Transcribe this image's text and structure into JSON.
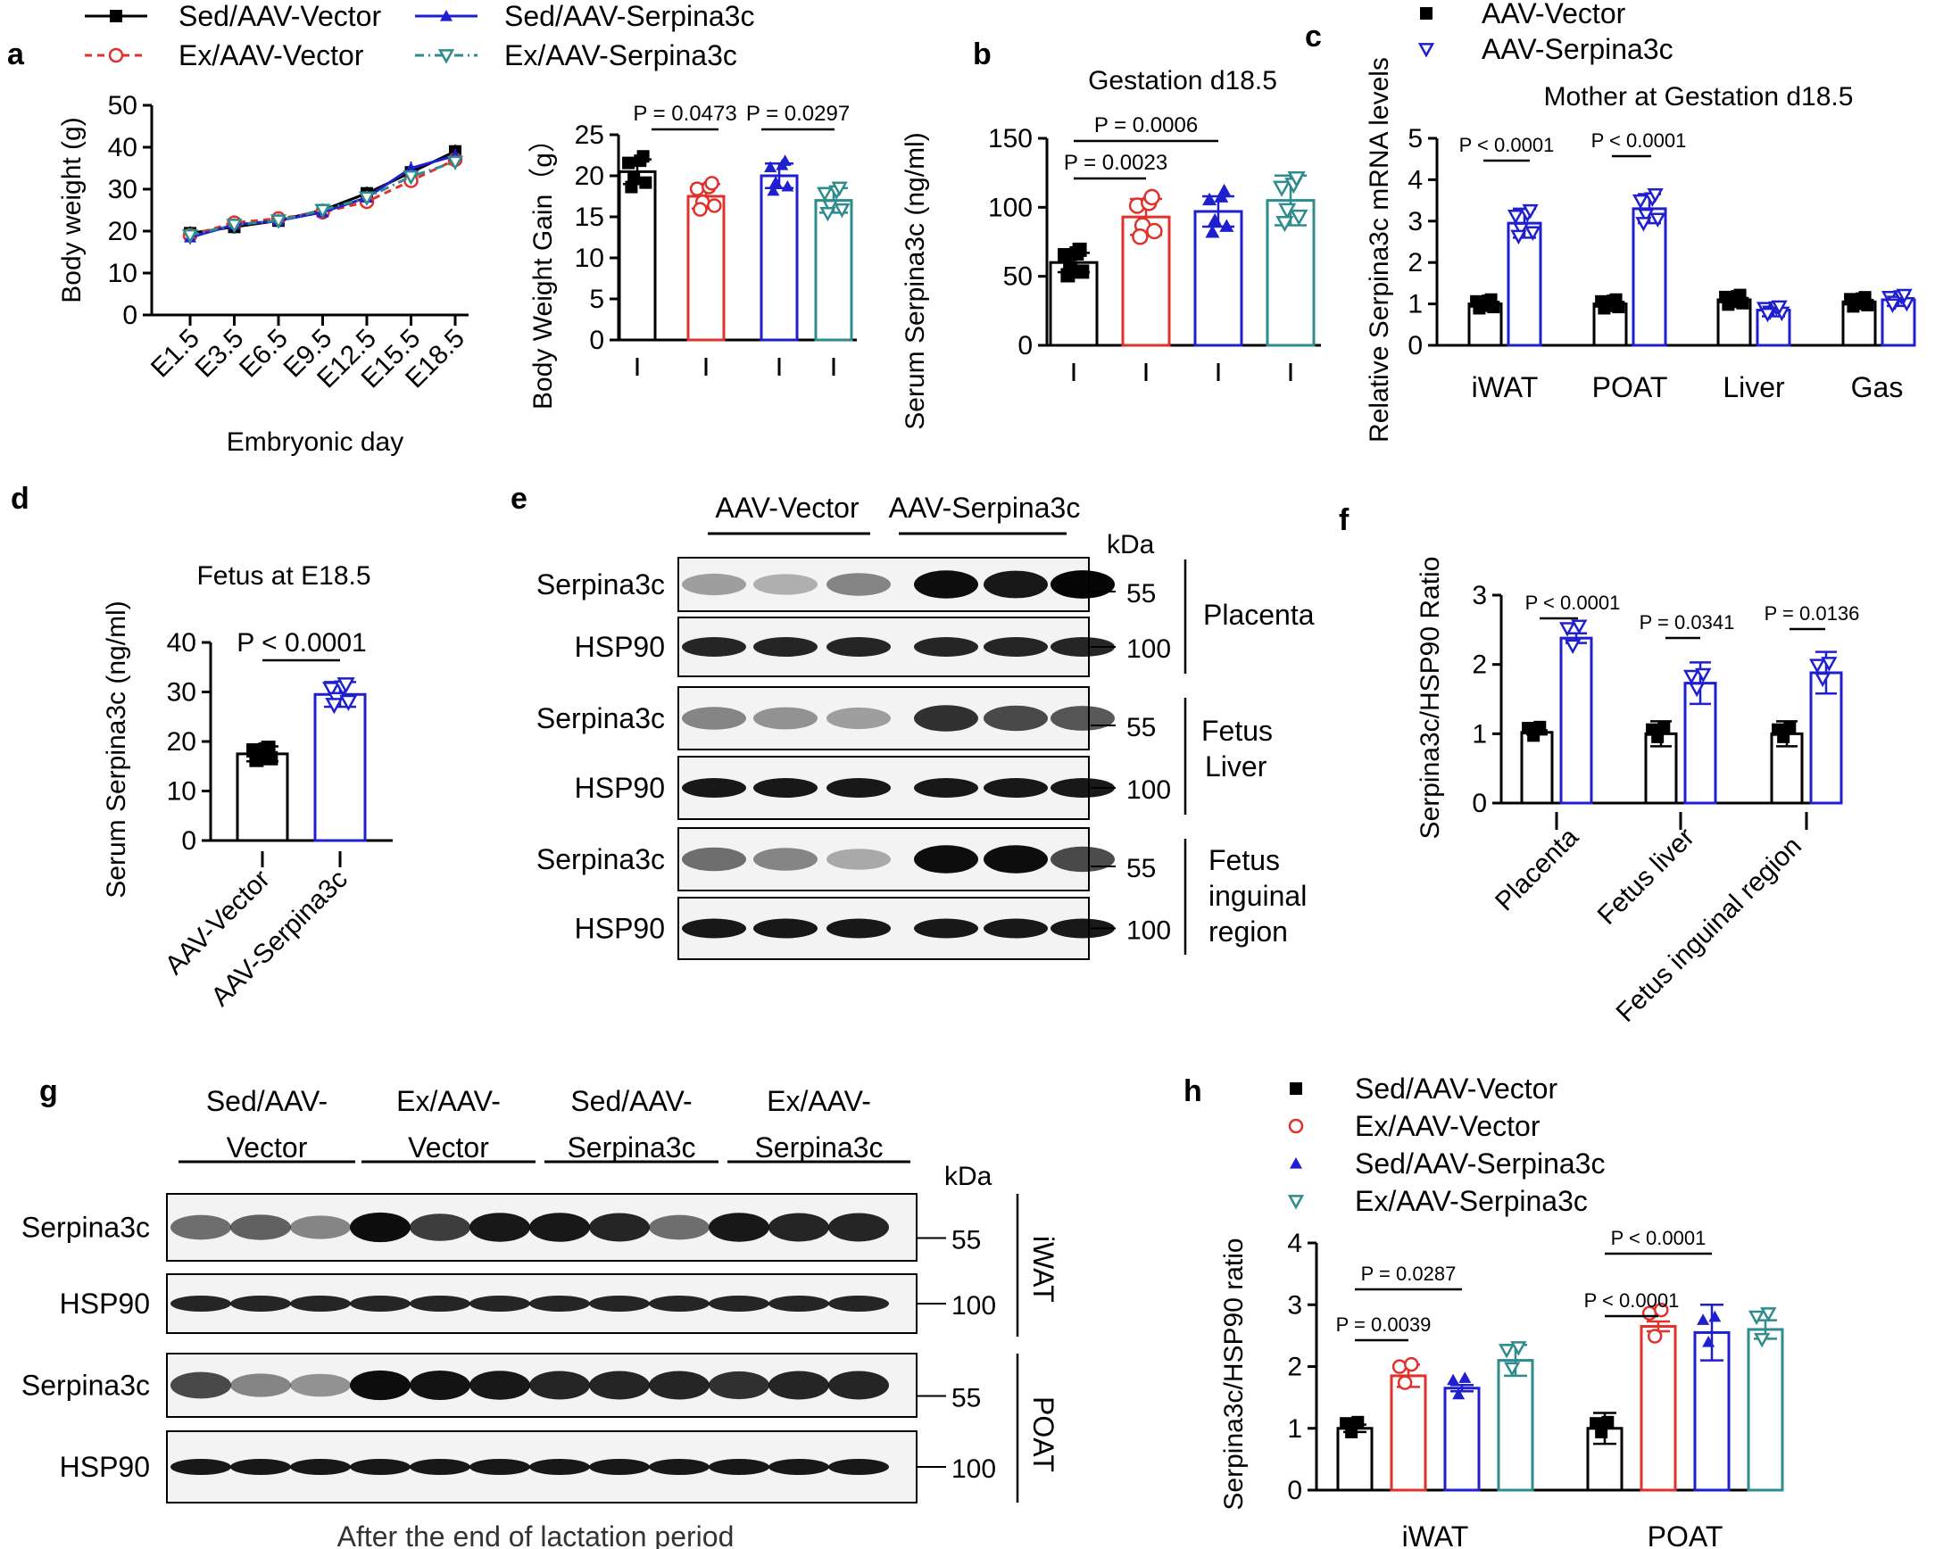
{
  "legend_top": [
    {
      "label": "Sed/AAV-Vector",
      "color": "#000000",
      "marker": "square",
      "dash": "none"
    },
    {
      "label": "Sed/AAV-Serpina3c",
      "color": "#1f1fcf",
      "marker": "triangle-up",
      "dash": "none"
    },
    {
      "label": "Ex/AAV-Vector",
      "color": "#e0312b",
      "marker": "circle-open",
      "dash": "8,6"
    },
    {
      "label": "Ex/AAV-Serpina3c",
      "color": "#2e8c8c",
      "marker": "triangle-down-open",
      "dash": "10,5,2,5"
    }
  ],
  "colors": {
    "sed_vec": "#000000",
    "ex_vec": "#e0312b",
    "sed_serp": "#1f1fcf",
    "ex_serp": "#2e8c8c"
  },
  "panels": {
    "a": {
      "letter": "a"
    },
    "b": {
      "letter": "b"
    },
    "c": {
      "letter": "c"
    },
    "d": {
      "letter": "d"
    },
    "e": {
      "letter": "e"
    },
    "f": {
      "letter": "f"
    },
    "g": {
      "letter": "g"
    },
    "h": {
      "letter": "h"
    }
  },
  "chart_data": [
    {
      "id": "a1",
      "type": "line",
      "ylabel": "Body weight (g)",
      "xlabel": "Embryonic day",
      "categories": [
        "E1.5",
        "E3.5",
        "E6.5",
        "E9.5",
        "E12.5",
        "E15.5",
        "E18.5"
      ],
      "ylim": [
        0,
        50
      ],
      "yticks": [
        0,
        10,
        20,
        30,
        40,
        50
      ],
      "series": [
        {
          "name": "Sed/AAV-Vector",
          "values": [
            19.5,
            21,
            22.5,
            25,
            29,
            34,
            39
          ]
        },
        {
          "name": "Ex/AAV-Vector",
          "values": [
            19,
            22,
            23,
            24.5,
            27,
            32,
            37
          ]
        },
        {
          "name": "Sed/AAV-Serpina3c",
          "values": [
            18.5,
            21.5,
            22.5,
            24.5,
            28,
            35,
            38
          ]
        },
        {
          "name": "Ex/AAV-Serpina3c",
          "values": [
            19,
            21.5,
            22.5,
            25,
            28,
            33,
            36.5
          ]
        }
      ]
    },
    {
      "id": "a2",
      "type": "bar",
      "ylabel": "Body Weight Gain（g）",
      "categories": [
        "Sed/AAV-Vector",
        "Ex/AAV-Vector",
        "Sed/AAV-Serpina3c",
        "Ex/AAV-Serpina3c"
      ],
      "values": [
        20.5,
        17.5,
        20,
        17
      ],
      "ylim": [
        0,
        25
      ],
      "yticks": [
        0,
        5,
        10,
        15,
        20,
        25
      ],
      "annotations": [
        {
          "text": "P = 0.0473"
        },
        {
          "text": "P = 0.0297"
        }
      ]
    },
    {
      "id": "b",
      "type": "bar",
      "title": "Gestation d18.5",
      "ylabel": "Serum Serpina3c  (ng/ml)",
      "categories": [
        "Sed/AAV-Vector",
        "Ex/AAV-Vector",
        "Sed/AAV-Serpina3c",
        "Ex/AAV-Serpina3c"
      ],
      "values": [
        60,
        93,
        97,
        105
      ],
      "ylim": [
        0,
        150
      ],
      "yticks": [
        0,
        50,
        100,
        150
      ],
      "annotations": [
        {
          "text": "P = 0.0006"
        },
        {
          "text": "P = 0.0023"
        }
      ]
    },
    {
      "id": "c",
      "type": "bar",
      "title": "Mother at Gestation d18.5",
      "ylabel": "Relative Serpina3c mRNA levels",
      "categories": [
        "iWAT",
        "POAT",
        "Liver",
        "Gas"
      ],
      "series": [
        {
          "name": "AAV-Vector",
          "values": [
            1.0,
            1.0,
            1.1,
            1.05
          ]
        },
        {
          "name": "AAV-Serpina3c",
          "values": [
            2.95,
            3.3,
            0.85,
            1.1
          ]
        }
      ],
      "ylim": [
        0,
        5
      ],
      "yticks": [
        0,
        1,
        2,
        3,
        4,
        5
      ],
      "annotations": [
        {
          "text": "P < 0.0001"
        },
        {
          "text": "P < 0.0001"
        }
      ]
    },
    {
      "id": "d",
      "type": "bar",
      "title": "Fetus at E18.5",
      "ylabel": "Serum Serpina3c (ng/ml)",
      "categories": [
        "AAV-Vector",
        "AAV-Serpina3c"
      ],
      "values": [
        17.5,
        29.5
      ],
      "ylim": [
        0,
        40
      ],
      "yticks": [
        0,
        10,
        20,
        30,
        40
      ],
      "annotations": [
        {
          "text": "P < 0.0001"
        }
      ]
    },
    {
      "id": "f",
      "type": "bar",
      "ylabel": "Serpina3c/HSP90 Ratio",
      "categories": [
        "Placenta",
        "Fetus liver",
        "Fetus inguinal region"
      ],
      "series": [
        {
          "name": "AAV-Vector",
          "values": [
            1.02,
            1.0,
            1.0
          ]
        },
        {
          "name": "AAV-Serpina3c",
          "values": [
            2.38,
            1.73,
            1.88
          ]
        }
      ],
      "ylim": [
        0,
        3
      ],
      "yticks": [
        0,
        1,
        2,
        3
      ],
      "annotations": [
        {
          "text": "P < 0.0001"
        },
        {
          "text": "P = 0.0341"
        },
        {
          "text": "P = 0.0136"
        }
      ]
    },
    {
      "id": "h",
      "type": "bar",
      "ylabel": "Serpina3c/HSP90 ratio",
      "categories": [
        "iWAT",
        "POAT"
      ],
      "series": [
        {
          "name": "Sed/AAV-Vector",
          "values": [
            1.0,
            1.0
          ]
        },
        {
          "name": "Ex/AAV-Vector",
          "values": [
            1.85,
            2.65
          ]
        },
        {
          "name": "Sed/AAV-Serpina3c",
          "values": [
            1.65,
            2.55
          ]
        },
        {
          "name": "Ex/AAV-Serpina3c",
          "values": [
            2.1,
            2.6
          ]
        }
      ],
      "ylim": [
        0,
        4
      ],
      "yticks": [
        0,
        1,
        2,
        3,
        4
      ],
      "annotations": [
        {
          "text": "P = 0.0287"
        },
        {
          "text": "P = 0.0039"
        },
        {
          "text": "P < 0.0001"
        },
        {
          "text": "P < 0.0001"
        }
      ]
    }
  ],
  "legend_c": [
    {
      "label": "AAV-Vector"
    },
    {
      "label": "AAV-Serpina3c"
    }
  ],
  "legend_h": [
    {
      "label": "Sed/AAV-Vector"
    },
    {
      "label": "Ex/AAV-Vector"
    },
    {
      "label": "Sed/AAV-Serpina3c"
    },
    {
      "label": "Ex/AAV-Serpina3c"
    }
  ],
  "blot_e": {
    "groups": [
      "AAV-Vector",
      "AAV-Serpina3c"
    ],
    "kda": "kDa",
    "rows": [
      {
        "label": "Serpina3c",
        "mw": "55"
      },
      {
        "label": "HSP90",
        "mw": "100"
      },
      {
        "label": "Serpina3c",
        "mw": "55"
      },
      {
        "label": "HSP90",
        "mw": "100"
      },
      {
        "label": "Serpina3c",
        "mw": "55"
      },
      {
        "label": "HSP90",
        "mw": "100"
      }
    ],
    "tissues": [
      "Placenta",
      "Fetus",
      "Liver",
      "Fetus",
      "inguinal",
      "region"
    ]
  },
  "blot_g": {
    "groups": [
      [
        "Sed/AAV-",
        "Vector"
      ],
      [
        "Ex/AAV-",
        "Vector"
      ],
      [
        "Sed/AAV-",
        "Serpina3c"
      ],
      [
        "Ex/AAV-",
        "Serpina3c"
      ]
    ],
    "kda": "kDa",
    "rows": [
      {
        "label": "Serpina3c",
        "mw": "55"
      },
      {
        "label": "HSP90",
        "mw": "100"
      },
      {
        "label": "Serpina3c",
        "mw": "55"
      },
      {
        "label": "HSP90",
        "mw": "100"
      }
    ],
    "tissues": [
      "iWAT",
      "POAT"
    ],
    "caption": "After the end of lactation period"
  }
}
